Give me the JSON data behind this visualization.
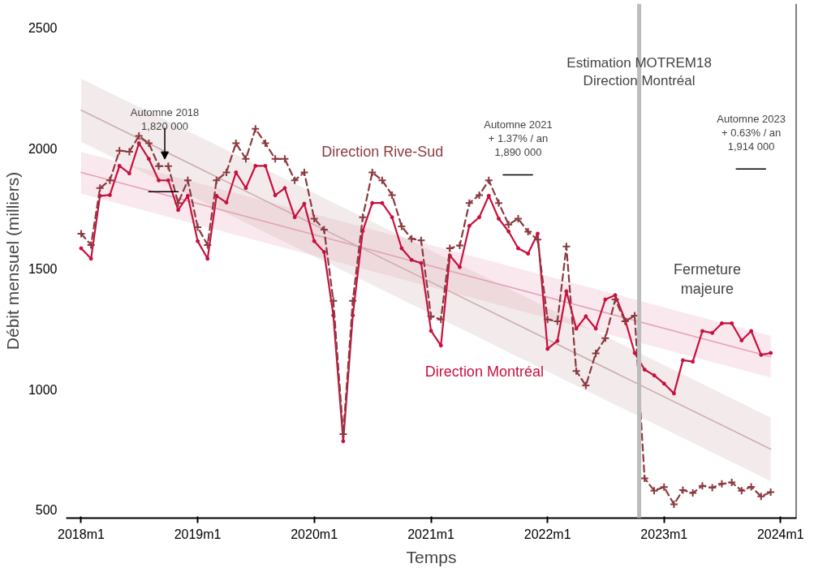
{
  "chart_data": {
    "type": "line",
    "xlabel": "Temps",
    "ylabel": "Débit mensuel (milliers)",
    "xlim": [
      "2017-11-15",
      "2024-02-20"
    ],
    "ylim": [
      466,
      2600
    ],
    "xticks": [
      {
        "value": "2018-01",
        "label": "2018m1"
      },
      {
        "value": "2019-01",
        "label": "2019m1"
      },
      {
        "value": "2020-01",
        "label": "2020m1"
      },
      {
        "value": "2021-01",
        "label": "2021m1"
      },
      {
        "value": "2022-01",
        "label": "2022m1"
      },
      {
        "value": "2023-01",
        "label": "2023m1"
      },
      {
        "value": "2024-01",
        "label": "2024m1"
      }
    ],
    "yticks": [
      500,
      1000,
      1500,
      2000,
      2500
    ],
    "grid": false,
    "legend": false,
    "x": [
      "2018-01",
      "2018-02",
      "2018-03",
      "2018-04",
      "2018-05",
      "2018-06",
      "2018-07",
      "2018-08",
      "2018-09",
      "2018-10",
      "2018-11",
      "2018-12",
      "2019-01",
      "2019-02",
      "2019-03",
      "2019-04",
      "2019-05",
      "2019-06",
      "2019-07",
      "2019-08",
      "2019-09",
      "2019-10",
      "2019-11",
      "2019-12",
      "2020-01",
      "2020-02",
      "2020-03",
      "2020-04",
      "2020-05",
      "2020-06",
      "2020-07",
      "2020-08",
      "2020-09",
      "2020-10",
      "2020-11",
      "2020-12",
      "2021-01",
      "2021-02",
      "2021-03",
      "2021-04",
      "2021-05",
      "2021-06",
      "2021-07",
      "2021-08",
      "2021-09",
      "2021-10",
      "2021-11",
      "2021-12",
      "2022-01",
      "2022-02",
      "2022-03",
      "2022-04",
      "2022-05",
      "2022-06",
      "2022-07",
      "2022-08",
      "2022-09",
      "2022-10",
      "2022-11",
      "2022-12",
      "2023-01",
      "2023-02",
      "2023-03",
      "2023-04",
      "2023-05",
      "2023-06",
      "2023-07",
      "2023-08",
      "2023-09",
      "2023-10",
      "2023-11",
      "2023-12"
    ],
    "series": [
      {
        "color": "#e6a3b8",
        "x": [
          "2018-01",
          "2023-12"
        ],
        "values": [
          1900,
          1135
        ],
        "lower": [
          1812,
          1049
        ],
        "upper": [
          1985,
          1222
        ],
        "marker": "none",
        "line_style": "solid"
      },
      {
        "color": "#cfaeb0",
        "x": [
          "2018-01",
          "2023-12"
        ],
        "values": [
          2158,
          752
        ],
        "lower": [
          2027,
          619
        ],
        "upper": [
          2289,
          883
        ],
        "marker": "none",
        "line_style": "solid"
      },
      {
        "name": "Direction Montréal",
        "color": "#c8103e",
        "marker": "circle",
        "line_style": "solid",
        "values": [
          1585,
          1542,
          1803,
          1806,
          1927,
          1896,
          2021,
          1956,
          1867,
          1867,
          1744,
          1803,
          1615,
          1542,
          1803,
          1775,
          1900,
          1835,
          1927,
          1927,
          1805,
          1835,
          1714,
          1770,
          1615,
          1570,
          1307,
          785,
          1307,
          1657,
          1773,
          1773,
          1714,
          1585,
          1537,
          1524,
          1243,
          1182,
          1555,
          1507,
          1678,
          1714,
          1803,
          1708,
          1655,
          1585,
          1563,
          1646,
          1168,
          1201,
          1407,
          1252,
          1303,
          1252,
          1373,
          1391,
          1288,
          1151,
          1082,
          1058,
          1024,
          983,
          1121,
          1115,
          1242,
          1234,
          1274,
          1274,
          1203,
          1242,
          1143,
          1151
        ]
      },
      {
        "name": "Direction Rive-Sud",
        "color": "#8b3a3f",
        "marker": "cross",
        "line_style": "dashed",
        "values": [
          1646,
          1599,
          1835,
          1867,
          1990,
          1986,
          2051,
          2021,
          1926,
          1926,
          1773,
          1867,
          1673,
          1599,
          1867,
          1900,
          2021,
          1956,
          2081,
          2021,
          1956,
          1956,
          1867,
          1900,
          1708,
          1663,
          1367,
          814,
          1367,
          1714,
          1900,
          1867,
          1806,
          1676,
          1625,
          1618,
          1303,
          1290,
          1585,
          1597,
          1773,
          1806,
          1867,
          1773,
          1684,
          1708,
          1654,
          1621,
          1290,
          1282,
          1593,
          1076,
          1016,
          1149,
          1212,
          1373,
          1282,
          1306,
          631,
          580,
          595,
          523,
          582,
          570,
          600,
          592,
          608,
          614,
          580,
          596,
          556,
          574
        ]
      },
      {
        "color": "#000000",
        "x": [
          "2018-08",
          "2018-11"
        ],
        "values": [
          1820,
          1820
        ],
        "marker": "none",
        "line_style": "solid"
      },
      {
        "color": "#000000",
        "x": [
          "2021-08-15",
          "2021-11-15"
        ],
        "values": [
          1890,
          1890
        ],
        "marker": "none",
        "line_style": "solid"
      },
      {
        "color": "#000000",
        "x": [
          "2023-08-15",
          "2023-11-15"
        ],
        "values": [
          1914,
          1914
        ],
        "marker": "none",
        "line_style": "solid"
      }
    ],
    "ref_lines": [
      {
        "axis": "x",
        "value": "2022-10-15",
        "label": "Fermeture majeure",
        "color": "#bdbdbd"
      }
    ],
    "annotations": [
      "Automne 2018\n1,820 000",
      {
        "text": "Automne 2021\n+ 1.37% / an\n1,890 000",
        "x": "2021-10-01",
        "y": 1890
      },
      {
        "text": "Automne 2023\n+ 0.63% / an\n1,914 000",
        "x": "2023-10-01",
        "y": 1914
      },
      "Estimation MOTREM18\nDirection Montréal"
    ]
  }
}
